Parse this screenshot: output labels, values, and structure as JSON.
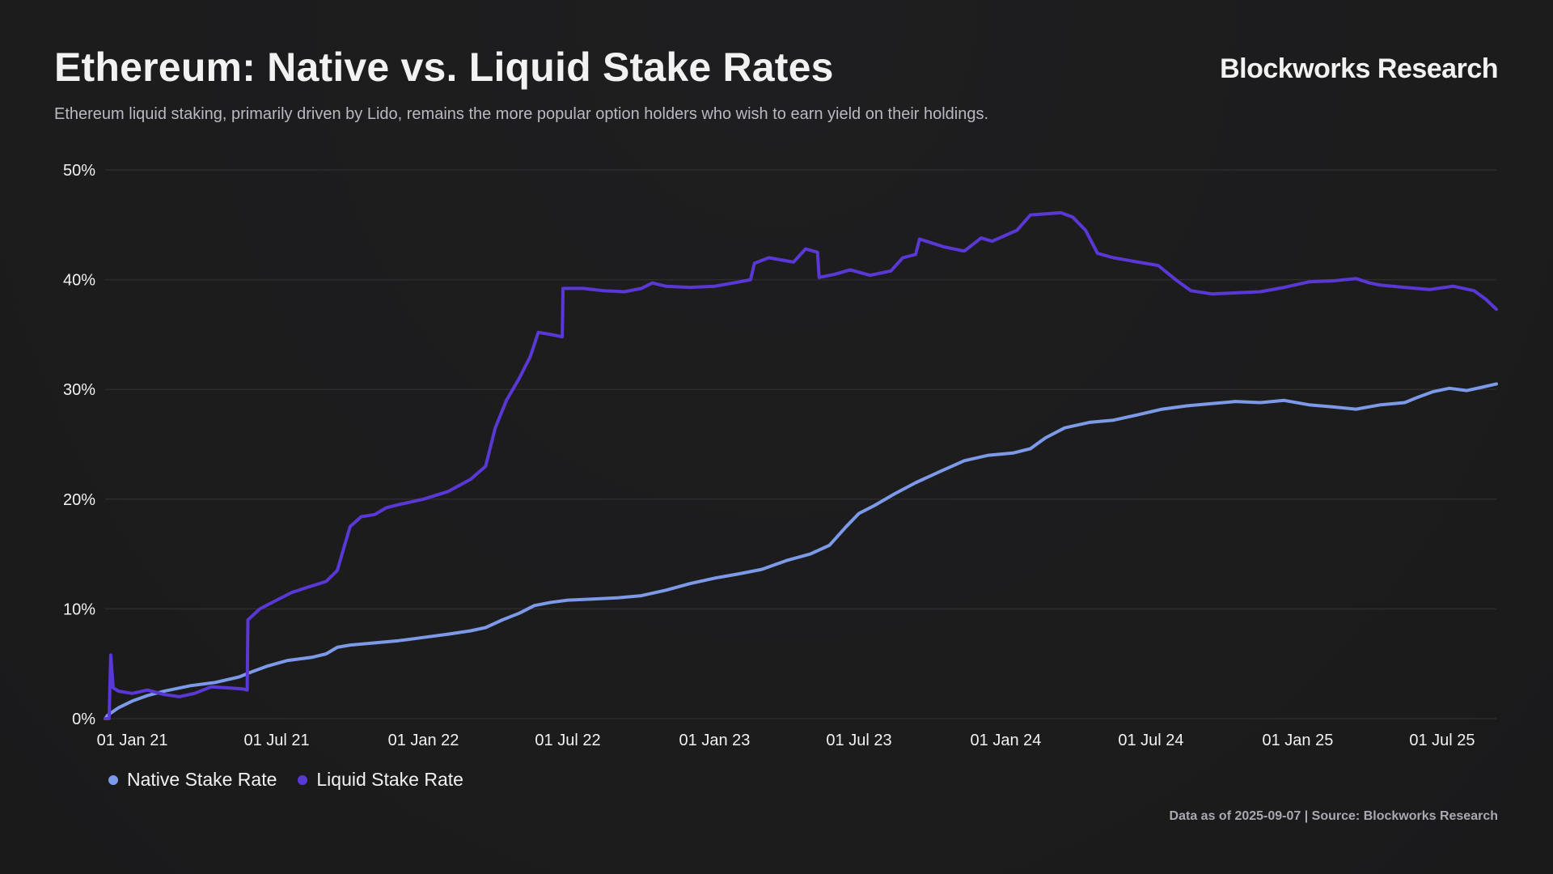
{
  "header": {
    "title": "Ethereum: Native vs. Liquid Stake Rates",
    "brand": "Blockworks Research",
    "subtitle": "Ethereum liquid staking, primarily driven by Lido, remains the more popular option holders who wish to earn yield on their holdings."
  },
  "footer": {
    "note": "Data as of 2025-09-07 | Source: Blockworks Research"
  },
  "colors": {
    "background": "#1c1c1d",
    "gridline": "#2c2c2e",
    "native": "#7d9ae8",
    "liquid": "#5a38d6"
  },
  "chart_data": {
    "type": "line",
    "title": "Ethereum: Native vs. Liquid Stake Rates",
    "xlabel": "",
    "ylabel": "",
    "x_range": [
      "2020-11-28",
      "2025-09-07"
    ],
    "ylim": [
      0,
      50
    ],
    "y_ticks": [
      0,
      10,
      20,
      30,
      40,
      50
    ],
    "y_tick_labels": [
      "0%",
      "10%",
      "20%",
      "30%",
      "40%",
      "50%"
    ],
    "x_ticks": [
      {
        "date": "2021-01-01",
        "label": "01 Jan 21"
      },
      {
        "date": "2021-07-01",
        "label": "01 Jul 21"
      },
      {
        "date": "2022-01-01",
        "label": "01 Jan 22"
      },
      {
        "date": "2022-07-01",
        "label": "01 Jul 22"
      },
      {
        "date": "2023-01-01",
        "label": "01 Jan 23"
      },
      {
        "date": "2023-07-01",
        "label": "01 Jul 23"
      },
      {
        "date": "2024-01-01",
        "label": "01 Jan 24"
      },
      {
        "date": "2024-07-01",
        "label": "01 Jul 24"
      },
      {
        "date": "2025-01-01",
        "label": "01 Jan 25"
      },
      {
        "date": "2025-07-01",
        "label": "01 Jul 25"
      }
    ],
    "grid": true,
    "legend_position": "bottom-left",
    "series": [
      {
        "name": "Native Stake Rate",
        "color": "#7d9ae8",
        "points": [
          [
            "2020-11-28",
            0.0
          ],
          [
            "2020-12-01",
            0.3
          ],
          [
            "2020-12-15",
            1.0
          ],
          [
            "2021-01-01",
            1.6
          ],
          [
            "2021-01-20",
            2.1
          ],
          [
            "2021-02-10",
            2.5
          ],
          [
            "2021-03-15",
            3.0
          ],
          [
            "2021-04-15",
            3.3
          ],
          [
            "2021-05-15",
            3.8
          ],
          [
            "2021-06-01",
            4.3
          ],
          [
            "2021-06-20",
            4.8
          ],
          [
            "2021-07-15",
            5.3
          ],
          [
            "2021-08-15",
            5.6
          ],
          [
            "2021-09-01",
            5.9
          ],
          [
            "2021-09-15",
            6.5
          ],
          [
            "2021-10-01",
            6.7
          ],
          [
            "2021-11-01",
            6.9
          ],
          [
            "2021-12-01",
            7.1
          ],
          [
            "2022-01-01",
            7.4
          ],
          [
            "2022-02-01",
            7.7
          ],
          [
            "2022-03-01",
            8.0
          ],
          [
            "2022-03-20",
            8.3
          ],
          [
            "2022-04-10",
            9.0
          ],
          [
            "2022-05-01",
            9.6
          ],
          [
            "2022-05-20",
            10.3
          ],
          [
            "2022-06-10",
            10.6
          ],
          [
            "2022-07-01",
            10.8
          ],
          [
            "2022-08-01",
            10.9
          ],
          [
            "2022-09-01",
            11.0
          ],
          [
            "2022-10-01",
            11.2
          ],
          [
            "2022-11-01",
            11.7
          ],
          [
            "2022-12-01",
            12.3
          ],
          [
            "2023-01-01",
            12.8
          ],
          [
            "2023-02-01",
            13.2
          ],
          [
            "2023-03-01",
            13.6
          ],
          [
            "2023-04-01",
            14.4
          ],
          [
            "2023-05-01",
            15.0
          ],
          [
            "2023-05-25",
            15.8
          ],
          [
            "2023-06-15",
            17.5
          ],
          [
            "2023-07-01",
            18.7
          ],
          [
            "2023-07-20",
            19.4
          ],
          [
            "2023-08-15",
            20.5
          ],
          [
            "2023-09-10",
            21.5
          ],
          [
            "2023-10-10",
            22.5
          ],
          [
            "2023-11-10",
            23.5
          ],
          [
            "2023-12-10",
            24.0
          ],
          [
            "2024-01-10",
            24.2
          ],
          [
            "2024-02-01",
            24.6
          ],
          [
            "2024-02-20",
            25.6
          ],
          [
            "2024-03-15",
            26.5
          ],
          [
            "2024-04-15",
            27.0
          ],
          [
            "2024-05-15",
            27.2
          ],
          [
            "2024-06-15",
            27.7
          ],
          [
            "2024-07-15",
            28.2
          ],
          [
            "2024-08-15",
            28.5
          ],
          [
            "2024-09-15",
            28.7
          ],
          [
            "2024-10-15",
            28.9
          ],
          [
            "2024-11-15",
            28.8
          ],
          [
            "2024-12-15",
            29.0
          ],
          [
            "2025-01-15",
            28.6
          ],
          [
            "2025-02-15",
            28.4
          ],
          [
            "2025-03-15",
            28.2
          ],
          [
            "2025-04-15",
            28.6
          ],
          [
            "2025-05-15",
            28.8
          ],
          [
            "2025-06-01",
            29.3
          ],
          [
            "2025-06-20",
            29.8
          ],
          [
            "2025-07-10",
            30.1
          ],
          [
            "2025-08-01",
            29.9
          ],
          [
            "2025-08-20",
            30.2
          ],
          [
            "2025-09-07",
            30.5
          ]
        ]
      },
      {
        "name": "Liquid Stake Rate",
        "color": "#5a38d6",
        "points": [
          [
            "2020-11-28",
            0.0
          ],
          [
            "2020-12-03",
            0.0
          ],
          [
            "2020-12-05",
            5.8
          ],
          [
            "2020-12-08",
            2.8
          ],
          [
            "2020-12-15",
            2.5
          ],
          [
            "2021-01-01",
            2.3
          ],
          [
            "2021-01-20",
            2.6
          ],
          [
            "2021-02-10",
            2.2
          ],
          [
            "2021-03-01",
            2.0
          ],
          [
            "2021-03-20",
            2.3
          ],
          [
            "2021-04-10",
            2.9
          ],
          [
            "2021-05-01",
            2.8
          ],
          [
            "2021-05-20",
            2.7
          ],
          [
            "2021-05-25",
            2.6
          ],
          [
            "2021-05-26",
            9.0
          ],
          [
            "2021-06-10",
            10.0
          ],
          [
            "2021-07-01",
            10.8
          ],
          [
            "2021-07-20",
            11.5
          ],
          [
            "2021-08-10",
            12.0
          ],
          [
            "2021-09-01",
            12.5
          ],
          [
            "2021-09-15",
            13.5
          ],
          [
            "2021-10-01",
            17.5
          ],
          [
            "2021-10-15",
            18.4
          ],
          [
            "2021-11-01",
            18.6
          ],
          [
            "2021-11-15",
            19.2
          ],
          [
            "2021-12-01",
            19.5
          ],
          [
            "2022-01-01",
            20.0
          ],
          [
            "2022-02-01",
            20.7
          ],
          [
            "2022-03-01",
            21.8
          ],
          [
            "2022-03-20",
            23.0
          ],
          [
            "2022-04-01",
            26.5
          ],
          [
            "2022-04-15",
            29.0
          ],
          [
            "2022-05-01",
            31.0
          ],
          [
            "2022-05-15",
            33.0
          ],
          [
            "2022-05-25",
            35.2
          ],
          [
            "2022-06-10",
            35.0
          ],
          [
            "2022-06-24",
            34.8
          ],
          [
            "2022-06-25",
            39.2
          ],
          [
            "2022-07-20",
            39.2
          ],
          [
            "2022-08-15",
            39.0
          ],
          [
            "2022-09-10",
            38.9
          ],
          [
            "2022-10-01",
            39.2
          ],
          [
            "2022-10-15",
            39.7
          ],
          [
            "2022-11-01",
            39.4
          ],
          [
            "2022-12-01",
            39.3
          ],
          [
            "2023-01-01",
            39.4
          ],
          [
            "2023-02-01",
            39.8
          ],
          [
            "2023-02-15",
            40.0
          ],
          [
            "2023-02-20",
            41.5
          ],
          [
            "2023-03-10",
            42.0
          ],
          [
            "2023-04-10",
            41.6
          ],
          [
            "2023-04-25",
            42.8
          ],
          [
            "2023-05-10",
            42.5
          ],
          [
            "2023-05-12",
            40.2
          ],
          [
            "2023-06-01",
            40.5
          ],
          [
            "2023-06-20",
            40.9
          ],
          [
            "2023-07-15",
            40.4
          ],
          [
            "2023-08-10",
            40.8
          ],
          [
            "2023-08-25",
            42.0
          ],
          [
            "2023-09-10",
            42.3
          ],
          [
            "2023-09-15",
            43.7
          ],
          [
            "2023-10-15",
            43.0
          ],
          [
            "2023-11-10",
            42.6
          ],
          [
            "2023-12-01",
            43.8
          ],
          [
            "2023-12-15",
            43.5
          ],
          [
            "2024-01-15",
            44.5
          ],
          [
            "2024-02-01",
            45.9
          ],
          [
            "2024-02-20",
            46.0
          ],
          [
            "2024-03-10",
            46.1
          ],
          [
            "2024-03-25",
            45.7
          ],
          [
            "2024-04-10",
            44.5
          ],
          [
            "2024-04-25",
            42.4
          ],
          [
            "2024-05-15",
            42.0
          ],
          [
            "2024-06-15",
            41.6
          ],
          [
            "2024-07-10",
            41.3
          ],
          [
            "2024-08-01",
            40.0
          ],
          [
            "2024-08-20",
            39.0
          ],
          [
            "2024-09-15",
            38.7
          ],
          [
            "2024-10-15",
            38.8
          ],
          [
            "2024-11-15",
            38.9
          ],
          [
            "2024-12-15",
            39.3
          ],
          [
            "2025-01-15",
            39.8
          ],
          [
            "2025-02-15",
            39.9
          ],
          [
            "2025-03-15",
            40.1
          ],
          [
            "2025-04-01",
            39.7
          ],
          [
            "2025-04-15",
            39.5
          ],
          [
            "2025-05-15",
            39.3
          ],
          [
            "2025-06-15",
            39.1
          ],
          [
            "2025-07-15",
            39.4
          ],
          [
            "2025-08-10",
            39.0
          ],
          [
            "2025-08-25",
            38.2
          ],
          [
            "2025-09-07",
            37.3
          ]
        ]
      }
    ]
  }
}
